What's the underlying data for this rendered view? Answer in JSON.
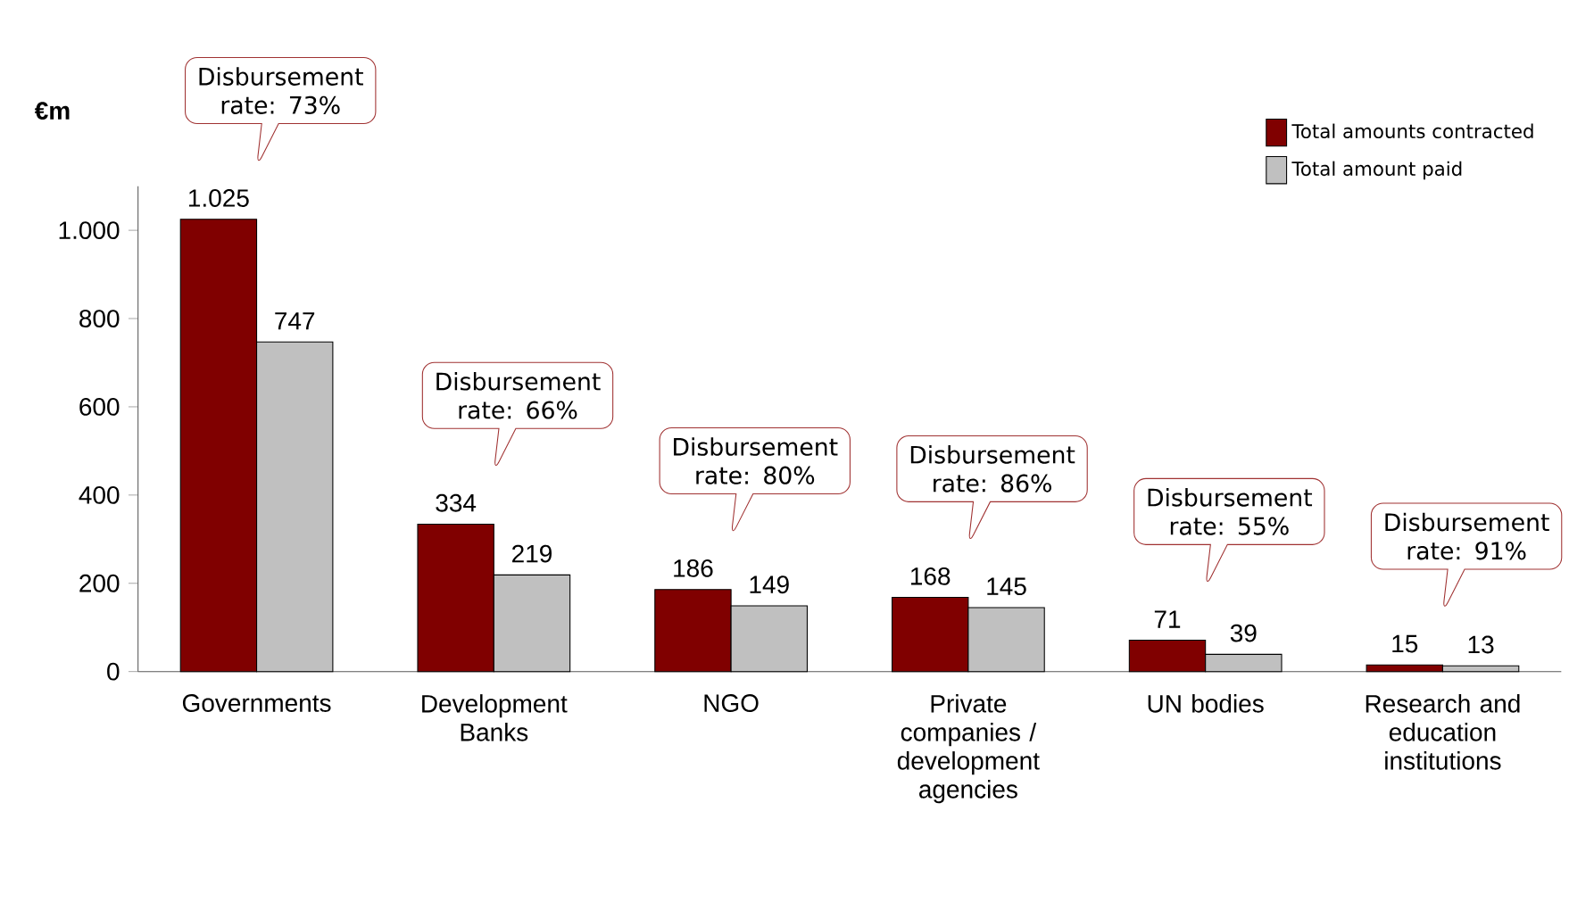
{
  "chart_data": {
    "type": "bar",
    "ylabel": "€m",
    "categories": [
      "Governments",
      "Development Banks",
      "NGO",
      "Private companies / development agencies",
      "UN bodies",
      "Research and education institutions"
    ],
    "series": [
      {
        "name": "Total amounts contracted",
        "color": "#800000",
        "values": [
          1025,
          334,
          186,
          168,
          71,
          15
        ],
        "value_labels": [
          "1.025",
          "334",
          "186",
          "168",
          "71",
          "15"
        ]
      },
      {
        "name": "Total amount paid",
        "color": "#c0c0c0",
        "values": [
          747,
          219,
          149,
          145,
          39,
          13
        ],
        "value_labels": [
          "747",
          "219",
          "149",
          "145",
          "39",
          "13"
        ]
      }
    ],
    "ylim": [
      0,
      1100
    ],
    "yticks": [
      0,
      200,
      400,
      600,
      800,
      {
        "value": 1000,
        "label": "1.000"
      }
    ],
    "legend": "top right",
    "annotations": [
      "Disbursement rate: 73%",
      "Disbursement rate: 66%",
      "Disbursement rate: 80%",
      "Disbursement rate: 86%",
      "Disbursement rate: 55%",
      "Disbursement rate: 91%"
    ]
  }
}
